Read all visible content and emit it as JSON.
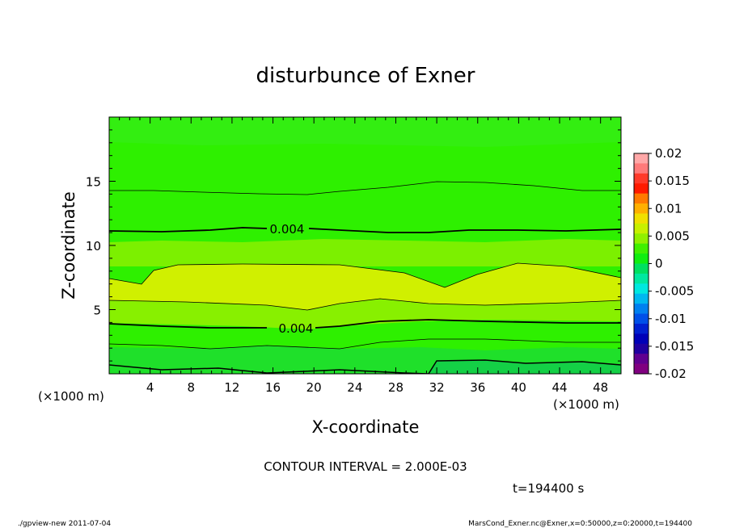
{
  "chart_data": {
    "type": "heatmap",
    "title": "disturbunce of Exner",
    "xlabel": "X-coordinate",
    "ylabel": "Z-coordinate",
    "x_unit_label": "(×1000 m)",
    "y_unit_label": "(×1000 m)",
    "xlim": [
      0,
      50
    ],
    "ylim": [
      0,
      20
    ],
    "x_ticks": [
      "4",
      "8",
      "12",
      "16",
      "20",
      "24",
      "28",
      "32",
      "36",
      "40",
      "44",
      "48"
    ],
    "y_ticks": [
      "5",
      "10",
      "15"
    ],
    "colorbar": {
      "labels": [
        "0.02",
        "0.015",
        "0.01",
        "0.005",
        "0",
        "-0.005",
        "-0.01",
        "-0.015",
        "-0.02"
      ],
      "values": [
        0.02,
        0.015,
        0.01,
        0.005,
        0,
        -0.005,
        -0.01,
        -0.015,
        -0.02
      ]
    },
    "contour_interval_text": "CONTOUR INTERVAL = 2.000E-03",
    "time_text": "t=194400 s",
    "contour_labels": [
      {
        "text": "0.004",
        "x": 15.5,
        "z": 11.2
      },
      {
        "text": "0.004",
        "x": 17.2,
        "z": 3.8
      }
    ]
  },
  "footer": {
    "left": "./gpview-new   2011-07-04",
    "right": "MarsCond_Exner.nc@Exner,x=0:50000,z=0:20000,t=194400"
  }
}
